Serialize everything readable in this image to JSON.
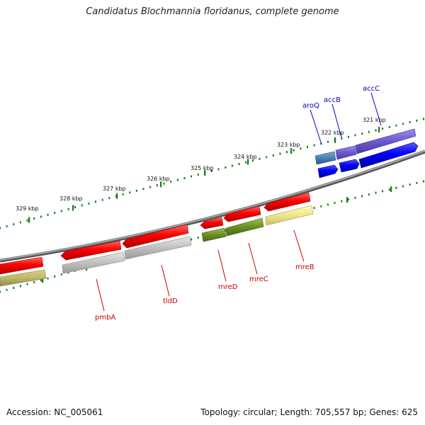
{
  "title": "Candidatus Blochmannia floridanus, complete genome",
  "footer": {
    "accession": "Accession: NC_005061",
    "topology": "Topology: circular; Length: 705,557 bp; Genes: 625"
  },
  "colors": {
    "backbone": "#7a7a7a",
    "ticks": "#1a7a1a",
    "label_top": "#0000bb",
    "label_bottom": "#cc0000"
  },
  "ticks": [
    "321 kbp",
    "322 kbp",
    "323 kbp",
    "324 kbp",
    "325 kbp",
    "326 kbp",
    "327 kbp",
    "328 kbp",
    "329 kbp"
  ],
  "genes_top": [
    {
      "name": "aroQ",
      "color": "#4a7fb0"
    },
    {
      "name": "accB",
      "color": "#7766cc"
    },
    {
      "name": "accC",
      "color": "#6a5acd"
    }
  ],
  "genes_bottom": [
    {
      "name": "mreB",
      "color": "#f0e68c"
    },
    {
      "name": "mreC",
      "color": "#6b8e23"
    },
    {
      "name": "mreD",
      "color": "#6b8e23"
    },
    {
      "name": "tldD",
      "color": "#bdbdbd"
    },
    {
      "name": "pmbA",
      "color": "#bdbdbd"
    }
  ]
}
